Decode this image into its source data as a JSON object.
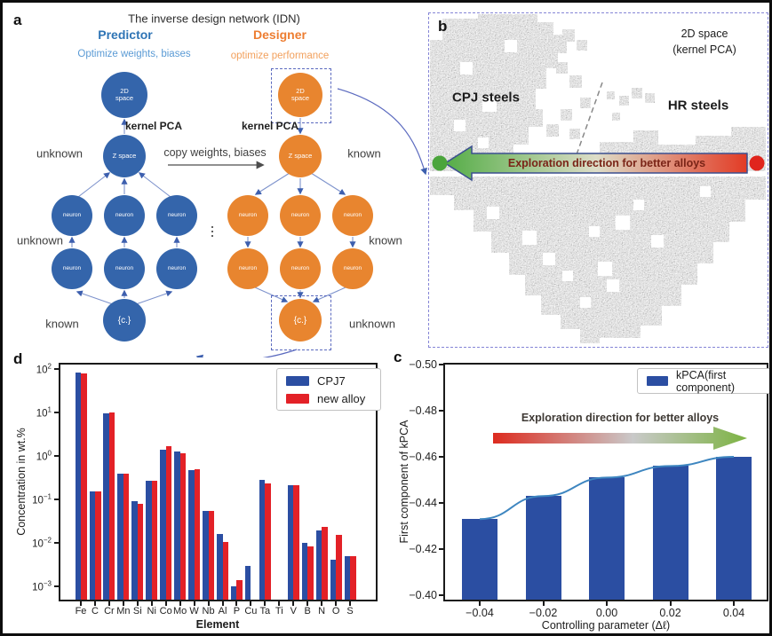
{
  "figure": {
    "panel_a": {
      "label": "a",
      "title": "The inverse design network (IDN)",
      "predictor": {
        "heading": "Predictor",
        "subtitle": "Optimize weights, biases",
        "annotation_top": "unknown",
        "annotation_middle": "unknown",
        "annotation_bottom": "known"
      },
      "designer": {
        "heading": "Designer",
        "subtitle": "optimize performance",
        "annotation_top": "known",
        "annotation_middle": "known",
        "annotation_bottom": "unknown"
      },
      "node_labels": {
        "top_node": "2D space",
        "latent_node": "Z space",
        "hidden_node": "neuron",
        "input_node": "{c.}"
      },
      "kernel_pca_left": "kernel PCA",
      "kernel_pca_right": "kernel PCA",
      "copy_arrow_label": "copy weights, biases",
      "dots": "⋮",
      "colors": {
        "predictor_node": "#3465ab",
        "designer_node": "#e8852f",
        "predictor_heading": "#2e74b5",
        "designer_heading": "#ed7d31",
        "predictor_subtitle": "#5b9bd5",
        "designer_subtitle": "#f2a05c"
      }
    },
    "panel_b": {
      "label": "b",
      "note_line1": "2D space",
      "note_line2": "(kernel PCA)",
      "cluster_left_label": "CPJ steels",
      "cluster_right_label": "HR steels",
      "arrow_label": "Exploration direction for better alloys",
      "arrow_label_color": "#7a2417",
      "arrow_gradient": [
        "#55ad47",
        "#ddddc8",
        "#e23b25"
      ],
      "endpoint_left_color": "#4ba53c",
      "endpoint_right_color": "#e0251d"
    },
    "panel_c": {
      "label": "c"
    },
    "panel_d": {
      "label": "d"
    }
  },
  "chart_data": [
    {
      "id": "panel_d",
      "type": "bar",
      "y_scale": "log",
      "xlabel": "Element",
      "ylabel": "Concentration in wt.%",
      "ylim": [
        0.0005,
        125
      ],
      "ytick_exponents": [
        2,
        1,
        0,
        -1,
        -2,
        -3
      ],
      "categories": [
        "Fe",
        "C",
        "Cr",
        "Mn",
        "Si",
        "Ni",
        "Co",
        "Mo",
        "W",
        "Nb",
        "Al",
        "P",
        "Cu",
        "Ta",
        "Ti",
        "V",
        "B",
        "N",
        "O",
        "S"
      ],
      "series": [
        {
          "name": "CPJ7",
          "color": "#2b4ea2",
          "values": [
            85,
            0.15,
            9.5,
            0.4,
            0.09,
            0.27,
            1.4,
            1.25,
            0.48,
            0.055,
            0.016,
            0.001,
            0.003,
            0.28,
            null,
            0.21,
            0.01,
            0.019,
            0.0042,
            0.005
          ]
        },
        {
          "name": "new alloy",
          "color": "#e32127",
          "values": [
            80,
            0.15,
            9.8,
            0.4,
            0.078,
            0.27,
            1.65,
            1.15,
            0.5,
            0.055,
            0.0105,
            0.0014,
            null,
            0.23,
            null,
            0.21,
            0.0085,
            0.023,
            0.015,
            0.005
          ]
        }
      ],
      "legend_position": "upper right",
      "grid": false
    },
    {
      "id": "panel_c",
      "type": "bar+line",
      "xlabel": "Controlling parameter (Δℓ)",
      "ylabel": "First component of kPCA",
      "axis_inverted": true,
      "ylim": [
        -0.5,
        -0.4
      ],
      "ytick_labels": [
        "−0.50",
        "−0.48",
        "−0.46",
        "−0.44",
        "−0.42",
        "−0.40"
      ],
      "x": [
        -0.04,
        -0.02,
        0,
        0.02,
        0.04
      ],
      "xtick_labels": [
        "−0.04",
        "−0.02",
        "0.00",
        "0.02",
        "0.04"
      ],
      "values": [
        -0.433,
        -0.443,
        -0.451,
        -0.456,
        -0.46
      ],
      "series_name": "kPCA(first component)",
      "bar_color": "#2b4ea2",
      "line_color": "#3e86c0",
      "annotation": "Exploration direction for better alloys",
      "legend_position": "upper right",
      "grid": false
    }
  ]
}
